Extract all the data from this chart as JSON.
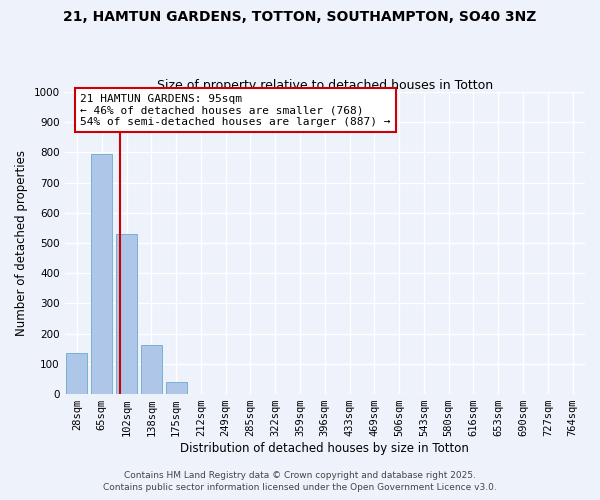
{
  "title": "21, HAMTUN GARDENS, TOTTON, SOUTHAMPTON, SO40 3NZ",
  "subtitle": "Size of property relative to detached houses in Totton",
  "xlabel": "Distribution of detached houses by size in Totton",
  "ylabel": "Number of detached properties",
  "bar_categories": [
    "28sqm",
    "65sqm",
    "102sqm",
    "138sqm",
    "175sqm",
    "212sqm",
    "249sqm",
    "285sqm",
    "322sqm",
    "359sqm",
    "396sqm",
    "433sqm",
    "469sqm",
    "506sqm",
    "543sqm",
    "580sqm",
    "616sqm",
    "653sqm",
    "690sqm",
    "727sqm",
    "764sqm"
  ],
  "bar_values": [
    135,
    795,
    530,
    162,
    40,
    0,
    0,
    0,
    0,
    0,
    0,
    0,
    0,
    0,
    0,
    0,
    0,
    0,
    0,
    0,
    0
  ],
  "bar_color": "#aec6e8",
  "bar_edge_color": "#7aafd4",
  "ylim": [
    0,
    1000
  ],
  "yticks": [
    0,
    100,
    200,
    300,
    400,
    500,
    600,
    700,
    800,
    900,
    1000
  ],
  "vline_x": 1.72,
  "vline_color": "#cc0000",
  "annotation_line1": "21 HAMTUN GARDENS: 95sqm",
  "annotation_line2": "← 46% of detached houses are smaller (768)",
  "annotation_line3": "54% of semi-detached houses are larger (887) →",
  "annotation_box_color": "#ffffff",
  "annotation_box_edge": "#cc0000",
  "footer_line1": "Contains HM Land Registry data © Crown copyright and database right 2025.",
  "footer_line2": "Contains public sector information licensed under the Open Government Licence v3.0.",
  "background_color": "#eef2fb",
  "grid_color": "#ffffff",
  "title_fontsize": 10,
  "subtitle_fontsize": 9,
  "axis_label_fontsize": 8.5,
  "tick_fontsize": 7.5,
  "annotation_fontsize": 8,
  "footer_fontsize": 6.5
}
